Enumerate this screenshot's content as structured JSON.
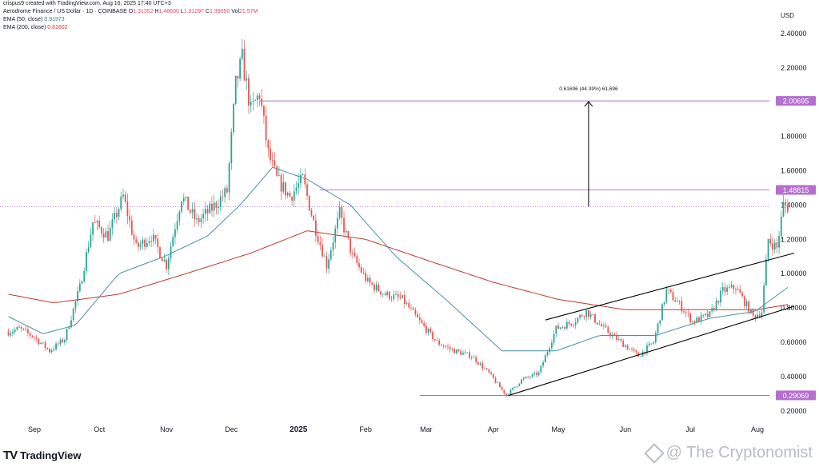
{
  "header": {
    "credit": "crispus9 created with TradingView.com, Aug 16, 2025 17:40 UTC+3",
    "symbol": "Aerodrome Finance / US Dollar · 1D · COINBASE",
    "ohlc": [
      {
        "label": "O",
        "value": "1.31352"
      },
      {
        "label": "H",
        "value": "1.48600"
      },
      {
        "label": "L",
        "value": "1.31297"
      },
      {
        "label": "C",
        "value": "1.39050"
      }
    ],
    "volume_label": "Vol",
    "volume": "21.97M",
    "ema50_label": "EMA (50, close)",
    "ema50_value": "0.91973",
    "ema200_label": "EMA (200, close)",
    "ema200_value": "0.81602"
  },
  "colors": {
    "up": "#26a69a",
    "down": "#ef5350",
    "ema50": "#4a8fa3",
    "ema200": "#c0392b",
    "level": "#9b59b6",
    "channel": "#000000",
    "badge": "#b56fd0"
  },
  "chart_data": {
    "type": "candlestick",
    "currency": "USD",
    "ylim": [
      0.15,
      2.5
    ],
    "y_ticks": [
      "2.40000",
      "2.20000",
      "2.00000",
      "1.80000",
      "1.60000",
      "1.40000",
      "1.20000",
      "1.00000",
      "0.80000",
      "0.60000",
      "0.40000",
      "0.20000"
    ],
    "x_ticks": [
      "Sep",
      "Oct",
      "Nov",
      "Dec",
      "2025",
      "Feb",
      "Mar",
      "Apr",
      "May",
      "Jun",
      "Jul",
      "Aug"
    ],
    "price_anchors": [
      [
        "2024-08-20",
        0.66
      ],
      [
        "2024-08-25",
        0.68
      ],
      [
        "2024-09-01",
        0.63
      ],
      [
        "2024-09-08",
        0.55
      ],
      [
        "2024-09-15",
        0.62
      ],
      [
        "2024-09-22",
        0.92
      ],
      [
        "2024-09-28",
        1.3
      ],
      [
        "2024-10-05",
        1.22
      ],
      [
        "2024-10-12",
        1.45
      ],
      [
        "2024-10-18",
        1.15
      ],
      [
        "2024-10-25",
        1.22
      ],
      [
        "2024-11-01",
        1.05
      ],
      [
        "2024-11-08",
        1.45
      ],
      [
        "2024-11-15",
        1.3
      ],
      [
        "2024-11-22",
        1.38
      ],
      [
        "2024-11-29",
        1.48
      ],
      [
        "2024-12-03",
        2.1
      ],
      [
        "2024-12-06",
        2.25
      ],
      [
        "2024-12-10",
        1.95
      ],
      [
        "2024-12-14",
        2.05
      ],
      [
        "2024-12-18",
        1.7
      ],
      [
        "2024-12-22",
        1.55
      ],
      [
        "2024-12-28",
        1.45
      ],
      [
        "2025-01-03",
        1.55
      ],
      [
        "2025-01-08",
        1.3
      ],
      [
        "2025-01-14",
        1.05
      ],
      [
        "2025-01-20",
        1.35
      ],
      [
        "2025-01-26",
        1.1
      ],
      [
        "2025-02-02",
        0.95
      ],
      [
        "2025-02-10",
        0.88
      ],
      [
        "2025-02-18",
        0.85
      ],
      [
        "2025-02-26",
        0.72
      ],
      [
        "2025-03-06",
        0.6
      ],
      [
        "2025-03-14",
        0.55
      ],
      [
        "2025-03-22",
        0.52
      ],
      [
        "2025-03-30",
        0.42
      ],
      [
        "2025-04-07",
        0.29
      ],
      [
        "2025-04-14",
        0.38
      ],
      [
        "2025-04-22",
        0.42
      ],
      [
        "2025-04-30",
        0.68
      ],
      [
        "2025-05-08",
        0.72
      ],
      [
        "2025-05-14",
        0.78
      ],
      [
        "2025-05-22",
        0.68
      ],
      [
        "2025-05-30",
        0.6
      ],
      [
        "2025-06-07",
        0.52
      ],
      [
        "2025-06-14",
        0.6
      ],
      [
        "2025-06-20",
        0.9
      ],
      [
        "2025-06-26",
        0.82
      ],
      [
        "2025-07-02",
        0.72
      ],
      [
        "2025-07-10",
        0.76
      ],
      [
        "2025-07-16",
        0.9
      ],
      [
        "2025-07-22",
        0.92
      ],
      [
        "2025-07-30",
        0.75
      ],
      [
        "2025-08-03",
        0.78
      ],
      [
        "2025-08-06",
        1.2
      ],
      [
        "2025-08-10",
        1.15
      ],
      [
        "2025-08-13",
        1.4
      ],
      [
        "2025-08-15",
        1.39
      ]
    ],
    "ema50_anchors": [
      [
        "2024-08-20",
        0.75
      ],
      [
        "2024-09-05",
        0.65
      ],
      [
        "2024-09-20",
        0.7
      ],
      [
        "2024-10-10",
        1.0
      ],
      [
        "2024-10-31",
        1.1
      ],
      [
        "2024-11-20",
        1.22
      ],
      [
        "2024-12-05",
        1.4
      ],
      [
        "2024-12-20",
        1.62
      ],
      [
        "2025-01-05",
        1.55
      ],
      [
        "2025-01-25",
        1.4
      ],
      [
        "2025-02-15",
        1.1
      ],
      [
        "2025-03-10",
        0.85
      ],
      [
        "2025-04-05",
        0.55
      ],
      [
        "2025-04-30",
        0.55
      ],
      [
        "2025-05-20",
        0.64
      ],
      [
        "2025-06-15",
        0.64
      ],
      [
        "2025-07-10",
        0.74
      ],
      [
        "2025-07-31",
        0.78
      ],
      [
        "2025-08-15",
        0.92
      ]
    ],
    "ema200_anchors": [
      [
        "2024-08-20",
        0.88
      ],
      [
        "2024-09-10",
        0.83
      ],
      [
        "2024-10-10",
        0.88
      ],
      [
        "2024-11-10",
        1.0
      ],
      [
        "2024-12-10",
        1.12
      ],
      [
        "2025-01-05",
        1.25
      ],
      [
        "2025-02-01",
        1.2
      ],
      [
        "2025-03-01",
        1.08
      ],
      [
        "2025-04-01",
        0.95
      ],
      [
        "2025-05-01",
        0.85
      ],
      [
        "2025-06-01",
        0.79
      ],
      [
        "2025-07-01",
        0.79
      ],
      [
        "2025-08-01",
        0.79
      ],
      [
        "2025-08-15",
        0.82
      ]
    ],
    "levels": [
      {
        "price": 2.00695,
        "label": "2.00695",
        "style": "solid"
      },
      {
        "price": 1.48815,
        "label": "1.48815",
        "style": "solid"
      },
      {
        "price": 0.29069,
        "label": "0.29069",
        "style": "solid"
      }
    ],
    "current_price_line": 1.3905,
    "channel": {
      "upper": [
        [
          "2025-04-25",
          0.73
        ],
        [
          "2025-08-18",
          1.12
        ]
      ],
      "lower": [
        [
          "2025-04-08",
          0.29
        ],
        [
          "2025-08-18",
          0.81
        ]
      ]
    },
    "measure": {
      "date": "2025-05-15",
      "from": 1.39,
      "to": 2.00695,
      "label": "0.61696 (44.39%) 61,696"
    }
  },
  "watermark": {
    "logo_text": "TradingView",
    "source": "@ The Cryptonomist"
  }
}
